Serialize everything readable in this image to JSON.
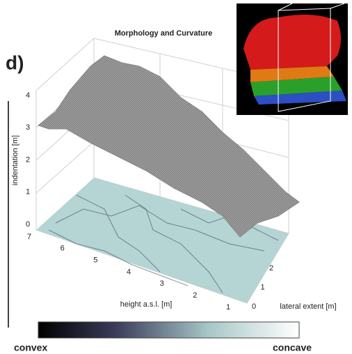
{
  "title": "Morphology and Curvature",
  "panel": "d)",
  "z_axis": {
    "label": "indentation [m]",
    "ticks": [
      0,
      1,
      2,
      3,
      4
    ]
  },
  "x_axis": {
    "label": "height a.s.l. [m]",
    "ticks": [
      7,
      6,
      5,
      4,
      3,
      2,
      1
    ]
  },
  "y_axis": {
    "label": "lateral extent [m]",
    "ticks": [
      0,
      1,
      2
    ]
  },
  "colorbar": {
    "low": "convex",
    "high": "concave"
  }
}
